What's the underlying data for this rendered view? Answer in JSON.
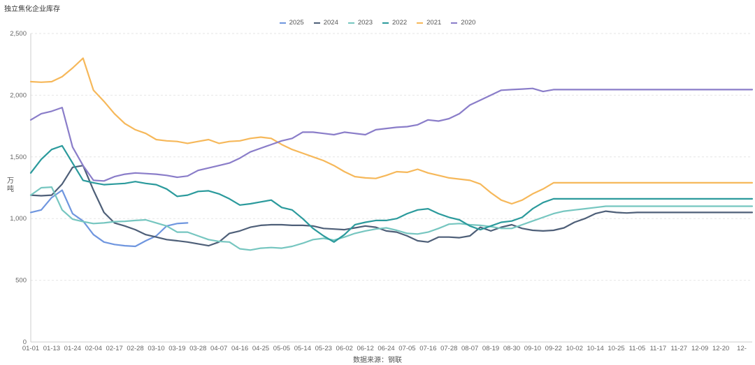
{
  "title": "独立焦化企业库存",
  "source": "数据来源：钢联",
  "chart_data": {
    "type": "line",
    "ylabel": "万吨",
    "ylim": [
      0,
      2500
    ],
    "yticks": [
      0,
      500,
      1000,
      1500,
      2000,
      2500
    ],
    "ytick_labels": [
      "0",
      "500",
      "1,000",
      "1,500",
      "2,000",
      "2,500"
    ],
    "x_tick_labels": [
      "01-01",
      "01-13",
      "01-24",
      "02-04",
      "02-17",
      "02-28",
      "03-10",
      "03-19",
      "03-28",
      "04-07",
      "04-16",
      "04-25",
      "05-05",
      "05-14",
      "05-23",
      "06-02",
      "06-12",
      "06-24",
      "07-05",
      "07-16",
      "07-28",
      "08-07",
      "08-19",
      "08-30",
      "09-10",
      "09-22",
      "10-02",
      "10-14",
      "10-25",
      "11-05",
      "11-17",
      "11-27",
      "12-09",
      "12-20",
      "12-"
    ],
    "legend_position": "top-center",
    "grid": "horizontal-dashed",
    "series": [
      {
        "name": "2025",
        "color": "#6f96df",
        "x": [
          0,
          1,
          2,
          3,
          4,
          5,
          6,
          7,
          8,
          9,
          10,
          11,
          12,
          13,
          14,
          15
        ],
        "values": [
          1050,
          1070,
          1170,
          1230,
          1040,
          980,
          870,
          810,
          790,
          780,
          775,
          820,
          860,
          940,
          960,
          965
        ]
      },
      {
        "name": "2024",
        "color": "#4e5f78",
        "x": [
          0,
          1,
          2,
          3,
          4,
          5,
          6,
          7,
          8,
          9,
          10,
          11,
          12,
          13,
          14,
          15,
          16,
          17,
          18,
          19,
          20,
          21,
          22,
          23,
          24,
          25,
          26,
          27,
          28,
          29,
          30,
          31,
          32,
          33,
          34,
          35,
          36,
          37,
          38,
          39,
          40,
          41,
          42,
          43,
          44,
          45,
          46,
          47,
          48,
          49,
          50,
          51,
          52,
          53,
          54,
          55,
          56,
          57,
          58,
          59,
          60,
          61,
          62,
          63,
          64,
          65,
          66,
          67,
          68,
          69
        ],
        "values": [
          1190,
          1185,
          1190,
          1280,
          1415,
          1430,
          1230,
          1050,
          965,
          940,
          910,
          870,
          850,
          830,
          820,
          810,
          795,
          780,
          810,
          880,
          900,
          930,
          945,
          950,
          950,
          945,
          945,
          940,
          920,
          915,
          910,
          925,
          940,
          930,
          900,
          890,
          860,
          820,
          810,
          850,
          850,
          845,
          860,
          930,
          900,
          930,
          950,
          920,
          905,
          900,
          905,
          925,
          970,
          1000,
          1040,
          1060,
          1050,
          1045,
          1050,
          1050,
          1050,
          1050,
          1050,
          1050,
          1050,
          1050,
          1050,
          1050,
          1050,
          1050
        ]
      },
      {
        "name": "2023",
        "color": "#76c6c0",
        "x": [
          0,
          1,
          2,
          3,
          4,
          5,
          6,
          7,
          8,
          9,
          10,
          11,
          12,
          13,
          14,
          15,
          16,
          17,
          18,
          19,
          20,
          21,
          22,
          23,
          24,
          25,
          26,
          27,
          28,
          29,
          30,
          31,
          32,
          33,
          34,
          35,
          36,
          37,
          38,
          39,
          40,
          41,
          42,
          43,
          44,
          45,
          46,
          47,
          48,
          49,
          50,
          51,
          52,
          53,
          54,
          55,
          56,
          57,
          58,
          59,
          60,
          61,
          62,
          63,
          64,
          65,
          66,
          67,
          68,
          69
        ],
        "values": [
          1190,
          1250,
          1255,
          1070,
          995,
          975,
          960,
          965,
          975,
          978,
          985,
          990,
          965,
          940,
          890,
          890,
          860,
          830,
          815,
          810,
          755,
          745,
          760,
          765,
          760,
          775,
          800,
          830,
          840,
          825,
          850,
          880,
          900,
          915,
          925,
          905,
          880,
          875,
          890,
          920,
          955,
          960,
          950,
          945,
          935,
          920,
          920,
          950,
          980,
          1010,
          1040,
          1060,
          1070,
          1080,
          1090,
          1100,
          1100,
          1100,
          1100,
          1100,
          1100,
          1100,
          1100,
          1100,
          1100,
          1100,
          1100,
          1100,
          1100,
          1100
        ]
      },
      {
        "name": "2022",
        "color": "#2b9a9c",
        "x": [
          0,
          1,
          2,
          3,
          4,
          5,
          6,
          7,
          8,
          9,
          10,
          11,
          12,
          13,
          14,
          15,
          16,
          17,
          18,
          19,
          20,
          21,
          22,
          23,
          24,
          25,
          26,
          27,
          28,
          29,
          30,
          31,
          32,
          33,
          34,
          35,
          36,
          37,
          38,
          39,
          40,
          41,
          42,
          43,
          44,
          45,
          46,
          47,
          48,
          49,
          50,
          51,
          52,
          53,
          54,
          55,
          56,
          57,
          58,
          59,
          60,
          61,
          62,
          63,
          64,
          65,
          66,
          67,
          68,
          69
        ],
        "values": [
          1370,
          1480,
          1560,
          1590,
          1450,
          1310,
          1290,
          1275,
          1280,
          1285,
          1300,
          1285,
          1275,
          1240,
          1180,
          1190,
          1220,
          1225,
          1200,
          1160,
          1110,
          1120,
          1135,
          1150,
          1090,
          1070,
          1000,
          920,
          860,
          810,
          870,
          950,
          970,
          985,
          985,
          1000,
          1040,
          1070,
          1080,
          1040,
          1010,
          990,
          940,
          910,
          940,
          970,
          980,
          1010,
          1080,
          1130,
          1160,
          1160,
          1160,
          1160,
          1160,
          1160,
          1160,
          1160,
          1160,
          1160,
          1160,
          1160,
          1160,
          1160,
          1160,
          1160,
          1160,
          1160,
          1160,
          1160
        ]
      },
      {
        "name": "2021",
        "color": "#f6b85a",
        "x": [
          0,
          1,
          2,
          3,
          4,
          5,
          6,
          7,
          8,
          9,
          10,
          11,
          12,
          13,
          14,
          15,
          16,
          17,
          18,
          19,
          20,
          21,
          22,
          23,
          24,
          25,
          26,
          27,
          28,
          29,
          30,
          31,
          32,
          33,
          34,
          35,
          36,
          37,
          38,
          39,
          40,
          41,
          42,
          43,
          44,
          45,
          46,
          47,
          48,
          49,
          50,
          51,
          52,
          53,
          54,
          55,
          56,
          57,
          58,
          59,
          60,
          61,
          62,
          63,
          64,
          65,
          66,
          67,
          68,
          69
        ],
        "values": [
          2110,
          2105,
          2110,
          2150,
          2220,
          2300,
          2040,
          1950,
          1850,
          1770,
          1720,
          1690,
          1640,
          1630,
          1625,
          1610,
          1625,
          1640,
          1610,
          1625,
          1630,
          1650,
          1660,
          1650,
          1600,
          1560,
          1530,
          1500,
          1470,
          1430,
          1380,
          1340,
          1330,
          1325,
          1350,
          1380,
          1375,
          1400,
          1370,
          1350,
          1330,
          1320,
          1310,
          1280,
          1210,
          1150,
          1120,
          1150,
          1200,
          1240,
          1290,
          1290,
          1290,
          1290,
          1290,
          1290,
          1290,
          1290,
          1290,
          1290,
          1290,
          1290,
          1290,
          1290,
          1290,
          1290,
          1290,
          1290,
          1290,
          1290
        ]
      },
      {
        "name": "2020",
        "color": "#8a7dc9",
        "x": [
          0,
          1,
          2,
          3,
          4,
          5,
          6,
          7,
          8,
          9,
          10,
          11,
          12,
          13,
          14,
          15,
          16,
          17,
          18,
          19,
          20,
          21,
          22,
          23,
          24,
          25,
          26,
          27,
          28,
          29,
          30,
          31,
          32,
          33,
          34,
          35,
          36,
          37,
          38,
          39,
          40,
          41,
          42,
          43,
          44,
          45,
          46,
          47,
          48,
          49,
          50,
          51,
          52,
          53,
          54,
          55,
          56,
          57,
          58,
          59,
          60,
          61,
          62,
          63,
          64,
          65,
          66,
          67,
          68,
          69
        ],
        "values": [
          1800,
          1850,
          1870,
          1900,
          1580,
          1430,
          1310,
          1305,
          1340,
          1360,
          1370,
          1365,
          1360,
          1350,
          1335,
          1345,
          1390,
          1410,
          1430,
          1450,
          1490,
          1540,
          1570,
          1600,
          1630,
          1650,
          1700,
          1700,
          1690,
          1680,
          1700,
          1690,
          1680,
          1720,
          1730,
          1740,
          1745,
          1760,
          1800,
          1790,
          1810,
          1850,
          1920,
          1960,
          2000,
          2040,
          2045,
          2050,
          2055,
          2030,
          2045,
          2045,
          2045,
          2045,
          2045,
          2045,
          2045,
          2045,
          2045,
          2045,
          2045,
          2045,
          2045,
          2045,
          2045,
          2045,
          2045,
          2045,
          2045,
          2045
        ]
      }
    ]
  }
}
